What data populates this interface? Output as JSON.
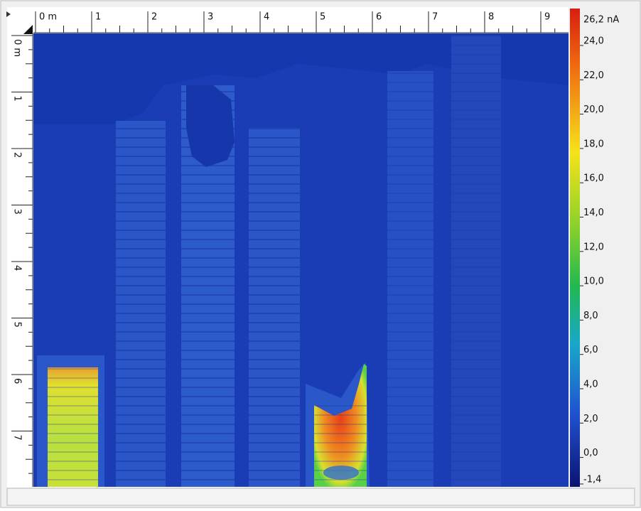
{
  "top_ruler": {
    "labels": [
      "0 m",
      "1",
      "2",
      "3",
      "4",
      "5",
      "6",
      "7",
      "8",
      "9"
    ]
  },
  "left_ruler": {
    "labels": [
      "0 m",
      "1",
      "2",
      "3",
      "4",
      "5",
      "6",
      "7"
    ]
  },
  "colorbar": {
    "labels": [
      "26,2 nA",
      "24,0",
      "22,0",
      "20,0",
      "18,0",
      "16,0",
      "14,0",
      "12,0",
      "10,0",
      "8,0",
      "6,0",
      "4,0",
      "2,0",
      "0,0",
      "-1,4"
    ]
  }
}
